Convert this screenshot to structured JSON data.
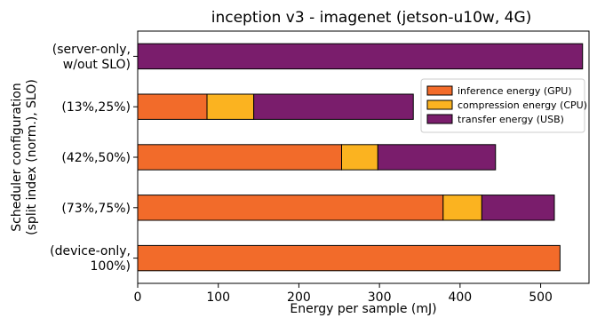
{
  "chart_data": {
    "type": "bar",
    "orientation": "horizontal",
    "stacked": true,
    "title": "inception v3 - imagenet (jetson-u10w, 4G)",
    "xlabel": "Energy per sample (mJ)",
    "ylabel_lines": [
      "Scheduler configuration",
      "(split index (norm.), SLO)"
    ],
    "xlim": [
      0,
      560
    ],
    "xticks": [
      0,
      100,
      200,
      300,
      400,
      500
    ],
    "grid": false,
    "legend_position": "upper-right",
    "categories": [
      [
        "(server-only,",
        "w/out SLO)"
      ],
      [
        "(13%,25%)"
      ],
      [
        "(42%,50%)"
      ],
      [
        "(73%,75%)"
      ],
      [
        "(device-only,",
        "100%)"
      ]
    ],
    "series": [
      {
        "name": "inference energy (GPU)",
        "color": "#f26b2a",
        "values": [
          0,
          86,
          253,
          379,
          524
        ]
      },
      {
        "name": "compression energy (CPU)",
        "color": "#fbb320",
        "values": [
          0,
          58,
          45,
          48,
          0
        ]
      },
      {
        "name": "transfer energy (USB)",
        "color": "#7a1d6c",
        "values": [
          552,
          198,
          146,
          90,
          0
        ]
      }
    ]
  }
}
